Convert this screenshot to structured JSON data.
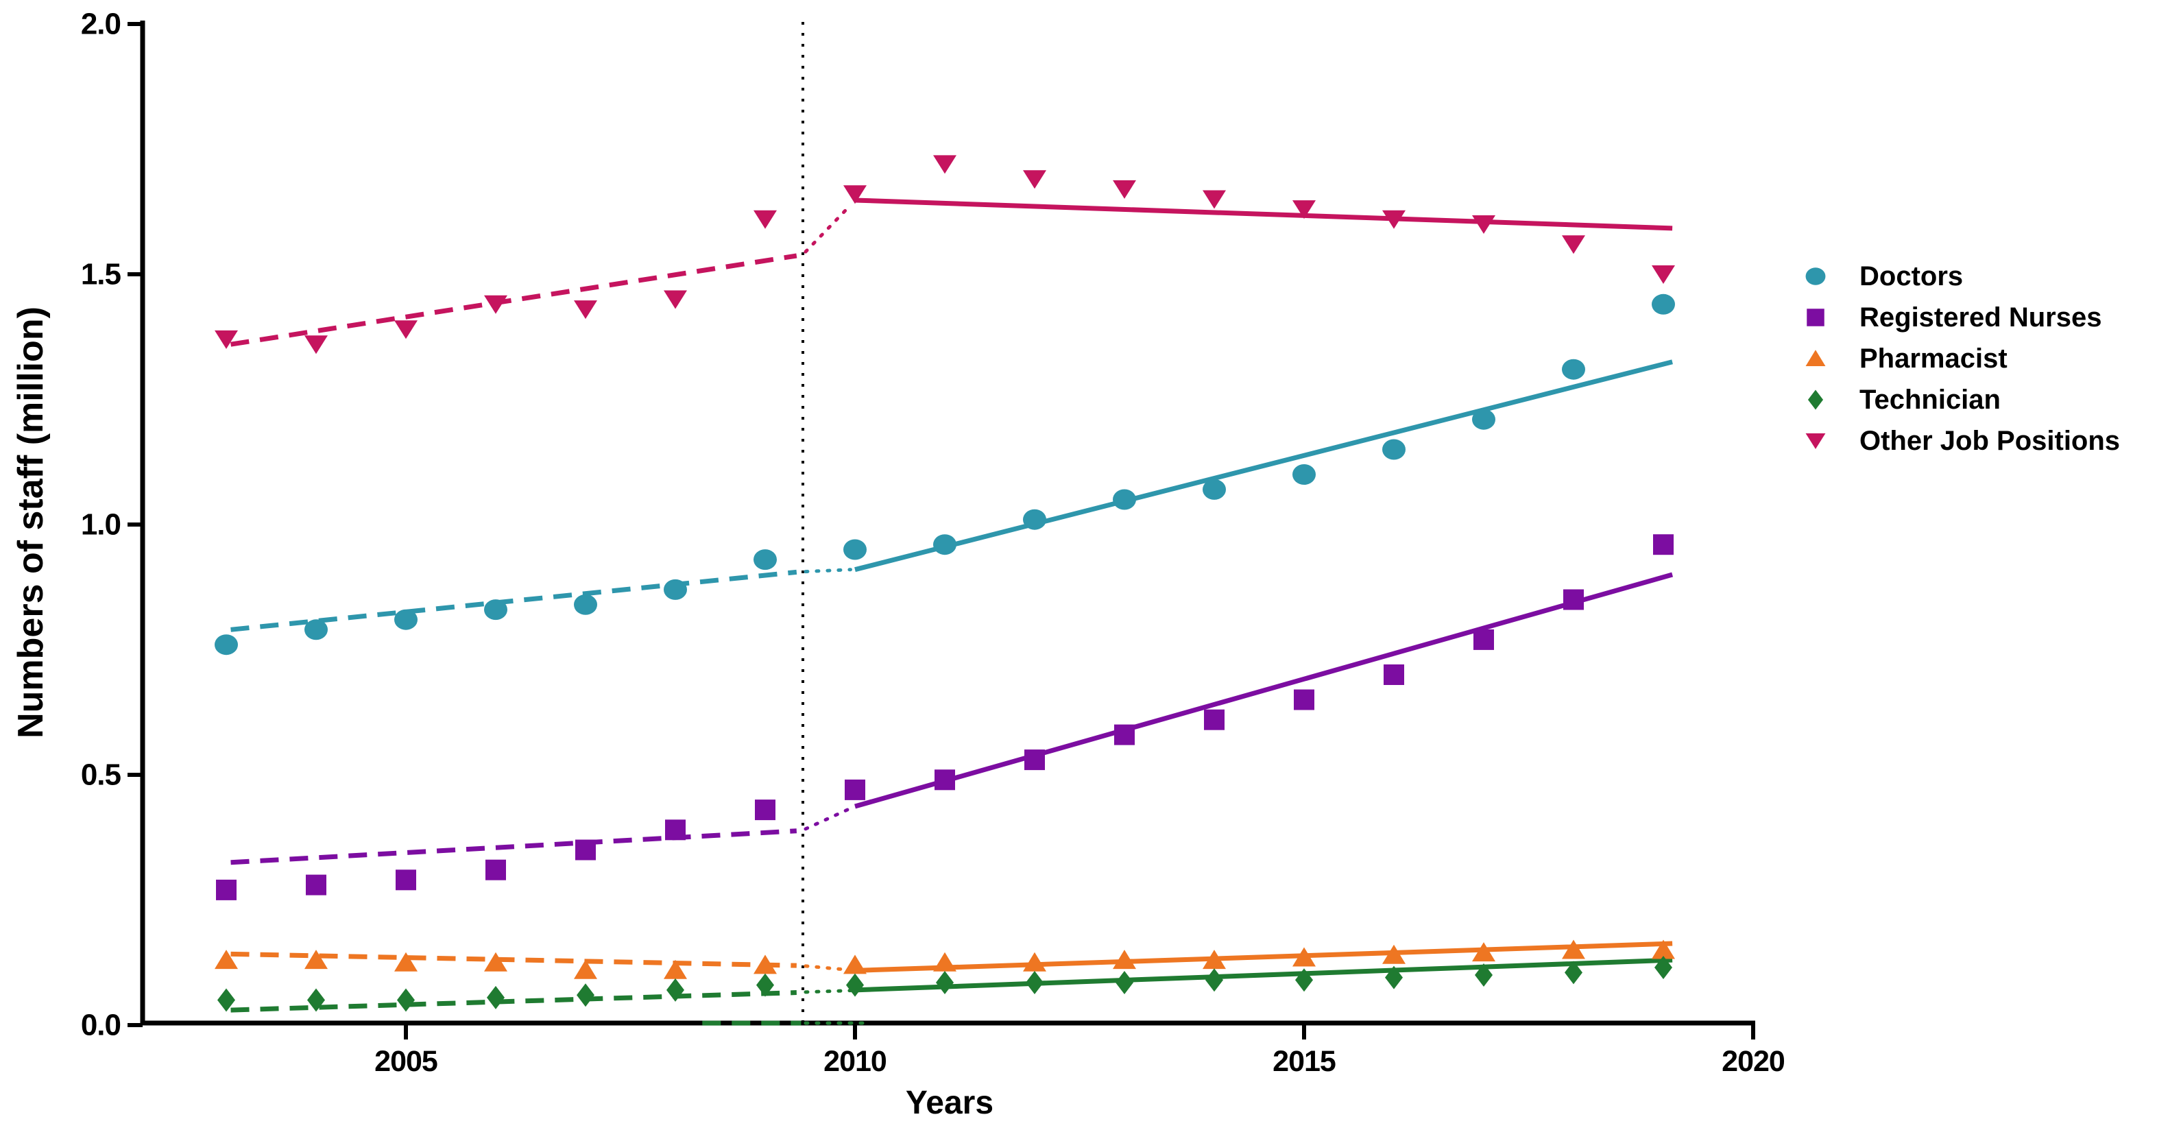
{
  "chart_data": {
    "type": "scatter",
    "title": "",
    "xlabel": "Years",
    "ylabel": "Numbers of staff (million)",
    "grid": false,
    "legend_position": "right",
    "xlim": [
      2002.4,
      2020
    ],
    "ylim": [
      0.0,
      2.0
    ],
    "x_ticks": [
      2005,
      2010,
      2015,
      2020
    ],
    "y_ticks": [
      "0.0",
      "0.5",
      "1.0",
      "1.5",
      "2.0"
    ],
    "y_tick_values": [
      0.0,
      0.5,
      1.0,
      1.5,
      2.0
    ],
    "interruption_year": 2009.42,
    "years": [
      2003,
      2004,
      2005,
      2006,
      2007,
      2008,
      2009,
      2010,
      2011,
      2012,
      2013,
      2014,
      2015,
      2016,
      2017,
      2018,
      2019
    ],
    "series": [
      {
        "name": "Doctors",
        "marker": "circle",
        "color": "#2E96AC",
        "values": [
          0.76,
          0.79,
          0.81,
          0.83,
          0.84,
          0.87,
          0.93,
          0.95,
          0.96,
          1.01,
          1.05,
          1.07,
          1.1,
          1.15,
          1.21,
          1.31,
          1.44
        ]
      },
      {
        "name": "Registered Nurses",
        "marker": "square",
        "color": "#7C0DA1",
        "values": [
          0.27,
          0.28,
          0.29,
          0.31,
          0.35,
          0.39,
          0.43,
          0.47,
          0.49,
          0.53,
          0.58,
          0.61,
          0.65,
          0.7,
          0.77,
          0.85,
          0.96
        ]
      },
      {
        "name": "Pharmacist",
        "marker": "triangle-up",
        "color": "#EE7622",
        "values": [
          0.13,
          0.13,
          0.125,
          0.125,
          0.11,
          0.11,
          0.12,
          0.12,
          0.125,
          0.125,
          0.13,
          0.13,
          0.135,
          0.14,
          0.145,
          0.15,
          0.15
        ]
      },
      {
        "name": "Technician",
        "marker": "diamond",
        "color": "#1F7B31",
        "values": [
          0.05,
          0.05,
          0.05,
          0.055,
          0.06,
          0.07,
          0.08,
          0.08,
          0.085,
          0.085,
          0.085,
          0.09,
          0.09,
          0.095,
          0.1,
          0.105,
          0.115
        ]
      },
      {
        "name": "Other Job Positions",
        "marker": "triangle-down",
        "color": "#C5145E",
        "values": [
          1.37,
          1.36,
          1.39,
          1.44,
          1.43,
          1.45,
          1.61,
          1.66,
          1.72,
          1.69,
          1.67,
          1.65,
          1.63,
          1.61,
          1.6,
          1.56,
          1.5
        ]
      }
    ],
    "trend_segments": [
      {
        "series": "Doctors",
        "style": "dashed",
        "x1": 2003.05,
        "v1": 0.79,
        "x2": 2009.35,
        "v2": 0.905
      },
      {
        "series": "Doctors",
        "style": "dotted",
        "x1": 2009.45,
        "v1": 0.906,
        "x2": 2009.95,
        "v2": 0.91
      },
      {
        "series": "Doctors",
        "style": "solid",
        "x1": 2010.0,
        "v1": 0.91,
        "x2": 2019.1,
        "v2": 1.325
      },
      {
        "series": "Registered Nurses",
        "style": "dashed",
        "x1": 2003.05,
        "v1": 0.325,
        "x2": 2009.35,
        "v2": 0.388
      },
      {
        "series": "Registered Nurses",
        "style": "dotted",
        "x1": 2009.45,
        "v1": 0.392,
        "x2": 2009.95,
        "v2": 0.433
      },
      {
        "series": "Registered Nurses",
        "style": "solid",
        "x1": 2010.0,
        "v1": 0.437,
        "x2": 2019.1,
        "v2": 0.9
      },
      {
        "series": "Pharmacist",
        "style": "dashed",
        "x1": 2003.05,
        "v1": 0.142,
        "x2": 2009.35,
        "v2": 0.119
      },
      {
        "series": "Pharmacist",
        "style": "dotted",
        "x1": 2009.45,
        "v1": 0.118,
        "x2": 2009.95,
        "v2": 0.11
      },
      {
        "series": "Pharmacist",
        "style": "solid",
        "x1": 2010.0,
        "v1": 0.109,
        "x2": 2019.1,
        "v2": 0.163
      },
      {
        "series": "Technician",
        "style": "dashed",
        "x1": 2003.05,
        "v1": 0.03,
        "x2": 2009.35,
        "v2": 0.065
      },
      {
        "series": "Technician",
        "style": "dotted",
        "x1": 2009.45,
        "v1": 0.066,
        "x2": 2009.95,
        "v2": 0.069
      },
      {
        "series": "Technician",
        "style": "solid",
        "x1": 2010.0,
        "v1": 0.07,
        "x2": 2019.1,
        "v2": 0.13
      },
      {
        "series": "Technician",
        "style": "dashed",
        "x1": 2008.3,
        "v1": 0.004,
        "x2": 2009.4,
        "v2": 0.004
      },
      {
        "series": "Technician",
        "style": "dotted",
        "x1": 2009.45,
        "v1": 0.004,
        "x2": 2010.15,
        "v2": 0.004
      },
      {
        "series": "Other Job Positions",
        "style": "dashed",
        "x1": 2003.05,
        "v1": 1.36,
        "x2": 2009.35,
        "v2": 1.537
      },
      {
        "series": "Other Job Positions",
        "style": "dotted",
        "x1": 2009.45,
        "v1": 1.545,
        "x2": 2009.95,
        "v2": 1.638
      },
      {
        "series": "Other Job Positions",
        "style": "solid",
        "x1": 2010.0,
        "v1": 1.648,
        "x2": 2019.1,
        "v2": 1.592
      }
    ],
    "axis_color": "#000000",
    "interruption_line_color": "#000000"
  }
}
